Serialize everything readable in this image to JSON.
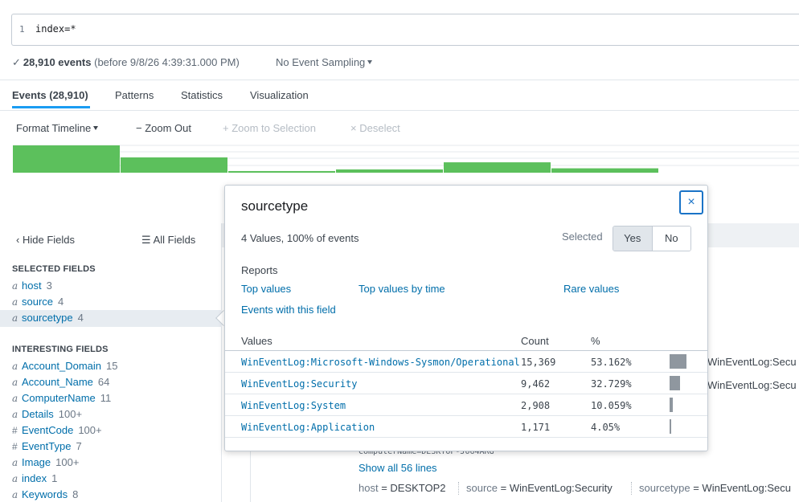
{
  "search": {
    "line_number": "1",
    "query": "index=*"
  },
  "status": {
    "check": "✓",
    "count": "28,910 events",
    "before": "(before 9/8/26 4:39:31.000 PM)",
    "sampling": "No Event Sampling"
  },
  "tabs": [
    {
      "label": "Events (28,910)"
    },
    {
      "label": "Patterns"
    },
    {
      "label": "Statistics"
    },
    {
      "label": "Visualization"
    }
  ],
  "timeline_toolbar": {
    "format": "Format Timeline",
    "zoom_out": "Zoom Out",
    "zoom_to_selection": "Zoom to Selection",
    "deselect": "Deselect"
  },
  "timeline": {
    "color": "#5cc05c",
    "values": [
      1.0,
      0.56,
      0.06,
      0.12,
      0.38,
      0.16
    ]
  },
  "sidebar": {
    "hide_fields": "Hide Fields",
    "all_fields": "All Fields",
    "selected_title": "SELECTED FIELDS",
    "selected": [
      {
        "type": "a",
        "name": "host",
        "count": "3"
      },
      {
        "type": "a",
        "name": "source",
        "count": "4"
      },
      {
        "type": "a",
        "name": "sourcetype",
        "count": "4"
      }
    ],
    "interesting_title": "INTERESTING FIELDS",
    "interesting": [
      {
        "type": "a",
        "name": "Account_Domain",
        "count": "15"
      },
      {
        "type": "a",
        "name": "Account_Name",
        "count": "64"
      },
      {
        "type": "a",
        "name": "ComputerName",
        "count": "11"
      },
      {
        "type": "a",
        "name": "Details",
        "count": "100+"
      },
      {
        "type": "#",
        "name": "EventCode",
        "count": "100+"
      },
      {
        "type": "#",
        "name": "EventType",
        "count": "7"
      },
      {
        "type": "a",
        "name": "Image",
        "count": "100+"
      },
      {
        "type": "a",
        "name": "index",
        "count": "1"
      },
      {
        "type": "a",
        "name": "Keywords",
        "count": "8"
      }
    ]
  },
  "background": {
    "event_value_1": "WinEventLog:Secu",
    "event_value_2": "WinEventLog:Secu",
    "computer_name": "ComputerName=DESKTOP-J064ARG",
    "show_all": "Show all 56 lines",
    "meta": [
      {
        "key": "host",
        "val": "DESKTOP2"
      },
      {
        "key": "source",
        "val": "WinEventLog:Security"
      },
      {
        "key": "sourcetype",
        "val": "WinEventLog:Secu"
      }
    ]
  },
  "popover": {
    "title": "sourcetype",
    "close": "×",
    "summary": "4 Values, 100% of events",
    "selected_label": "Selected",
    "yes": "Yes",
    "no": "No",
    "reports_title": "Reports",
    "reports": {
      "top_values": "Top values",
      "top_values_by_time": "Top values by time",
      "rare_values": "Rare values",
      "events_with_field": "Events with this field"
    },
    "columns": {
      "values": "Values",
      "count": "Count",
      "pct": "%"
    },
    "rows": [
      {
        "value": "WinEventLog:Microsoft-Windows-Sysmon/Operational",
        "count": "15,369",
        "pct": "53.162%",
        "fraction": 0.53162
      },
      {
        "value": "WinEventLog:Security",
        "count": "9,462",
        "pct": "32.729%",
        "fraction": 0.32729
      },
      {
        "value": "WinEventLog:System",
        "count": "2,908",
        "pct": "10.059%",
        "fraction": 0.10059
      },
      {
        "value": "WinEventLog:Application",
        "count": "1,171",
        "pct": "4.05%",
        "fraction": 0.0405
      }
    ]
  }
}
